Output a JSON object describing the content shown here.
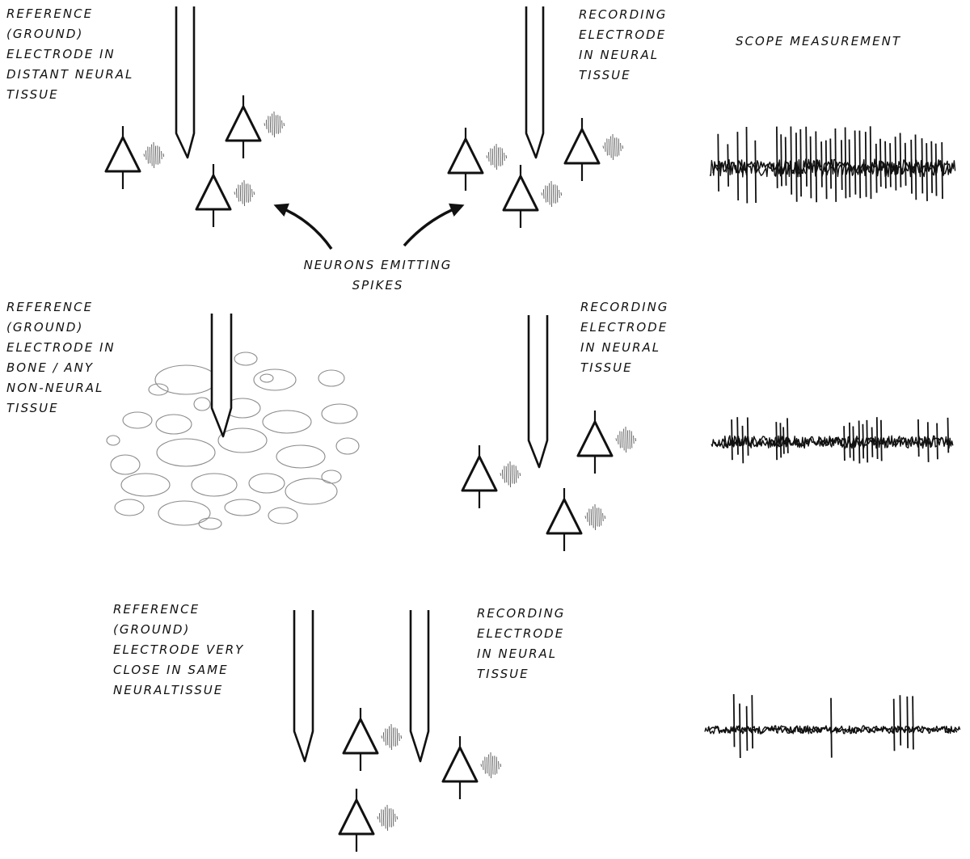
{
  "rows": [
    {
      "reference_label": [
        "Reference",
        "(ground)",
        "electrode in",
        "Distant Neural",
        "tissue"
      ],
      "recording_label": [
        "Recording",
        "electrode",
        "in neural",
        "tissue"
      ],
      "scope_title": "Scope Measurement",
      "scope_trace": {
        "noise_level": "high",
        "spike_bursts": 4
      }
    },
    {
      "reference_label": [
        "Reference",
        "(ground)",
        "electrode in",
        "Bone / any",
        "non-neural",
        "tissue"
      ],
      "recording_label": [
        "Recording",
        "electrode",
        "in neural",
        "tissue"
      ],
      "scope_trace": {
        "noise_level": "medium",
        "spike_bursts": 4
      }
    },
    {
      "reference_label": [
        "Reference",
        "(ground)",
        "electrode very",
        "close in same",
        "Neuraltissue"
      ],
      "recording_label": [
        "Recording",
        "electrode",
        "in neural",
        "tissue"
      ],
      "scope_trace": {
        "noise_level": "low",
        "spike_bursts": 3
      }
    }
  ],
  "callout": [
    "Neurons emitting",
    "spikes"
  ],
  "colors": {
    "ink": "#111111",
    "tissue_outline": "#8a8a8a",
    "spike_texture": "#555555"
  },
  "icons": [
    "electrode-needle-icon",
    "neuron-triangle-icon",
    "spike-emission-icon",
    "bone-tissue-icon",
    "scope-trace-icon",
    "curved-arrow-icon"
  ]
}
